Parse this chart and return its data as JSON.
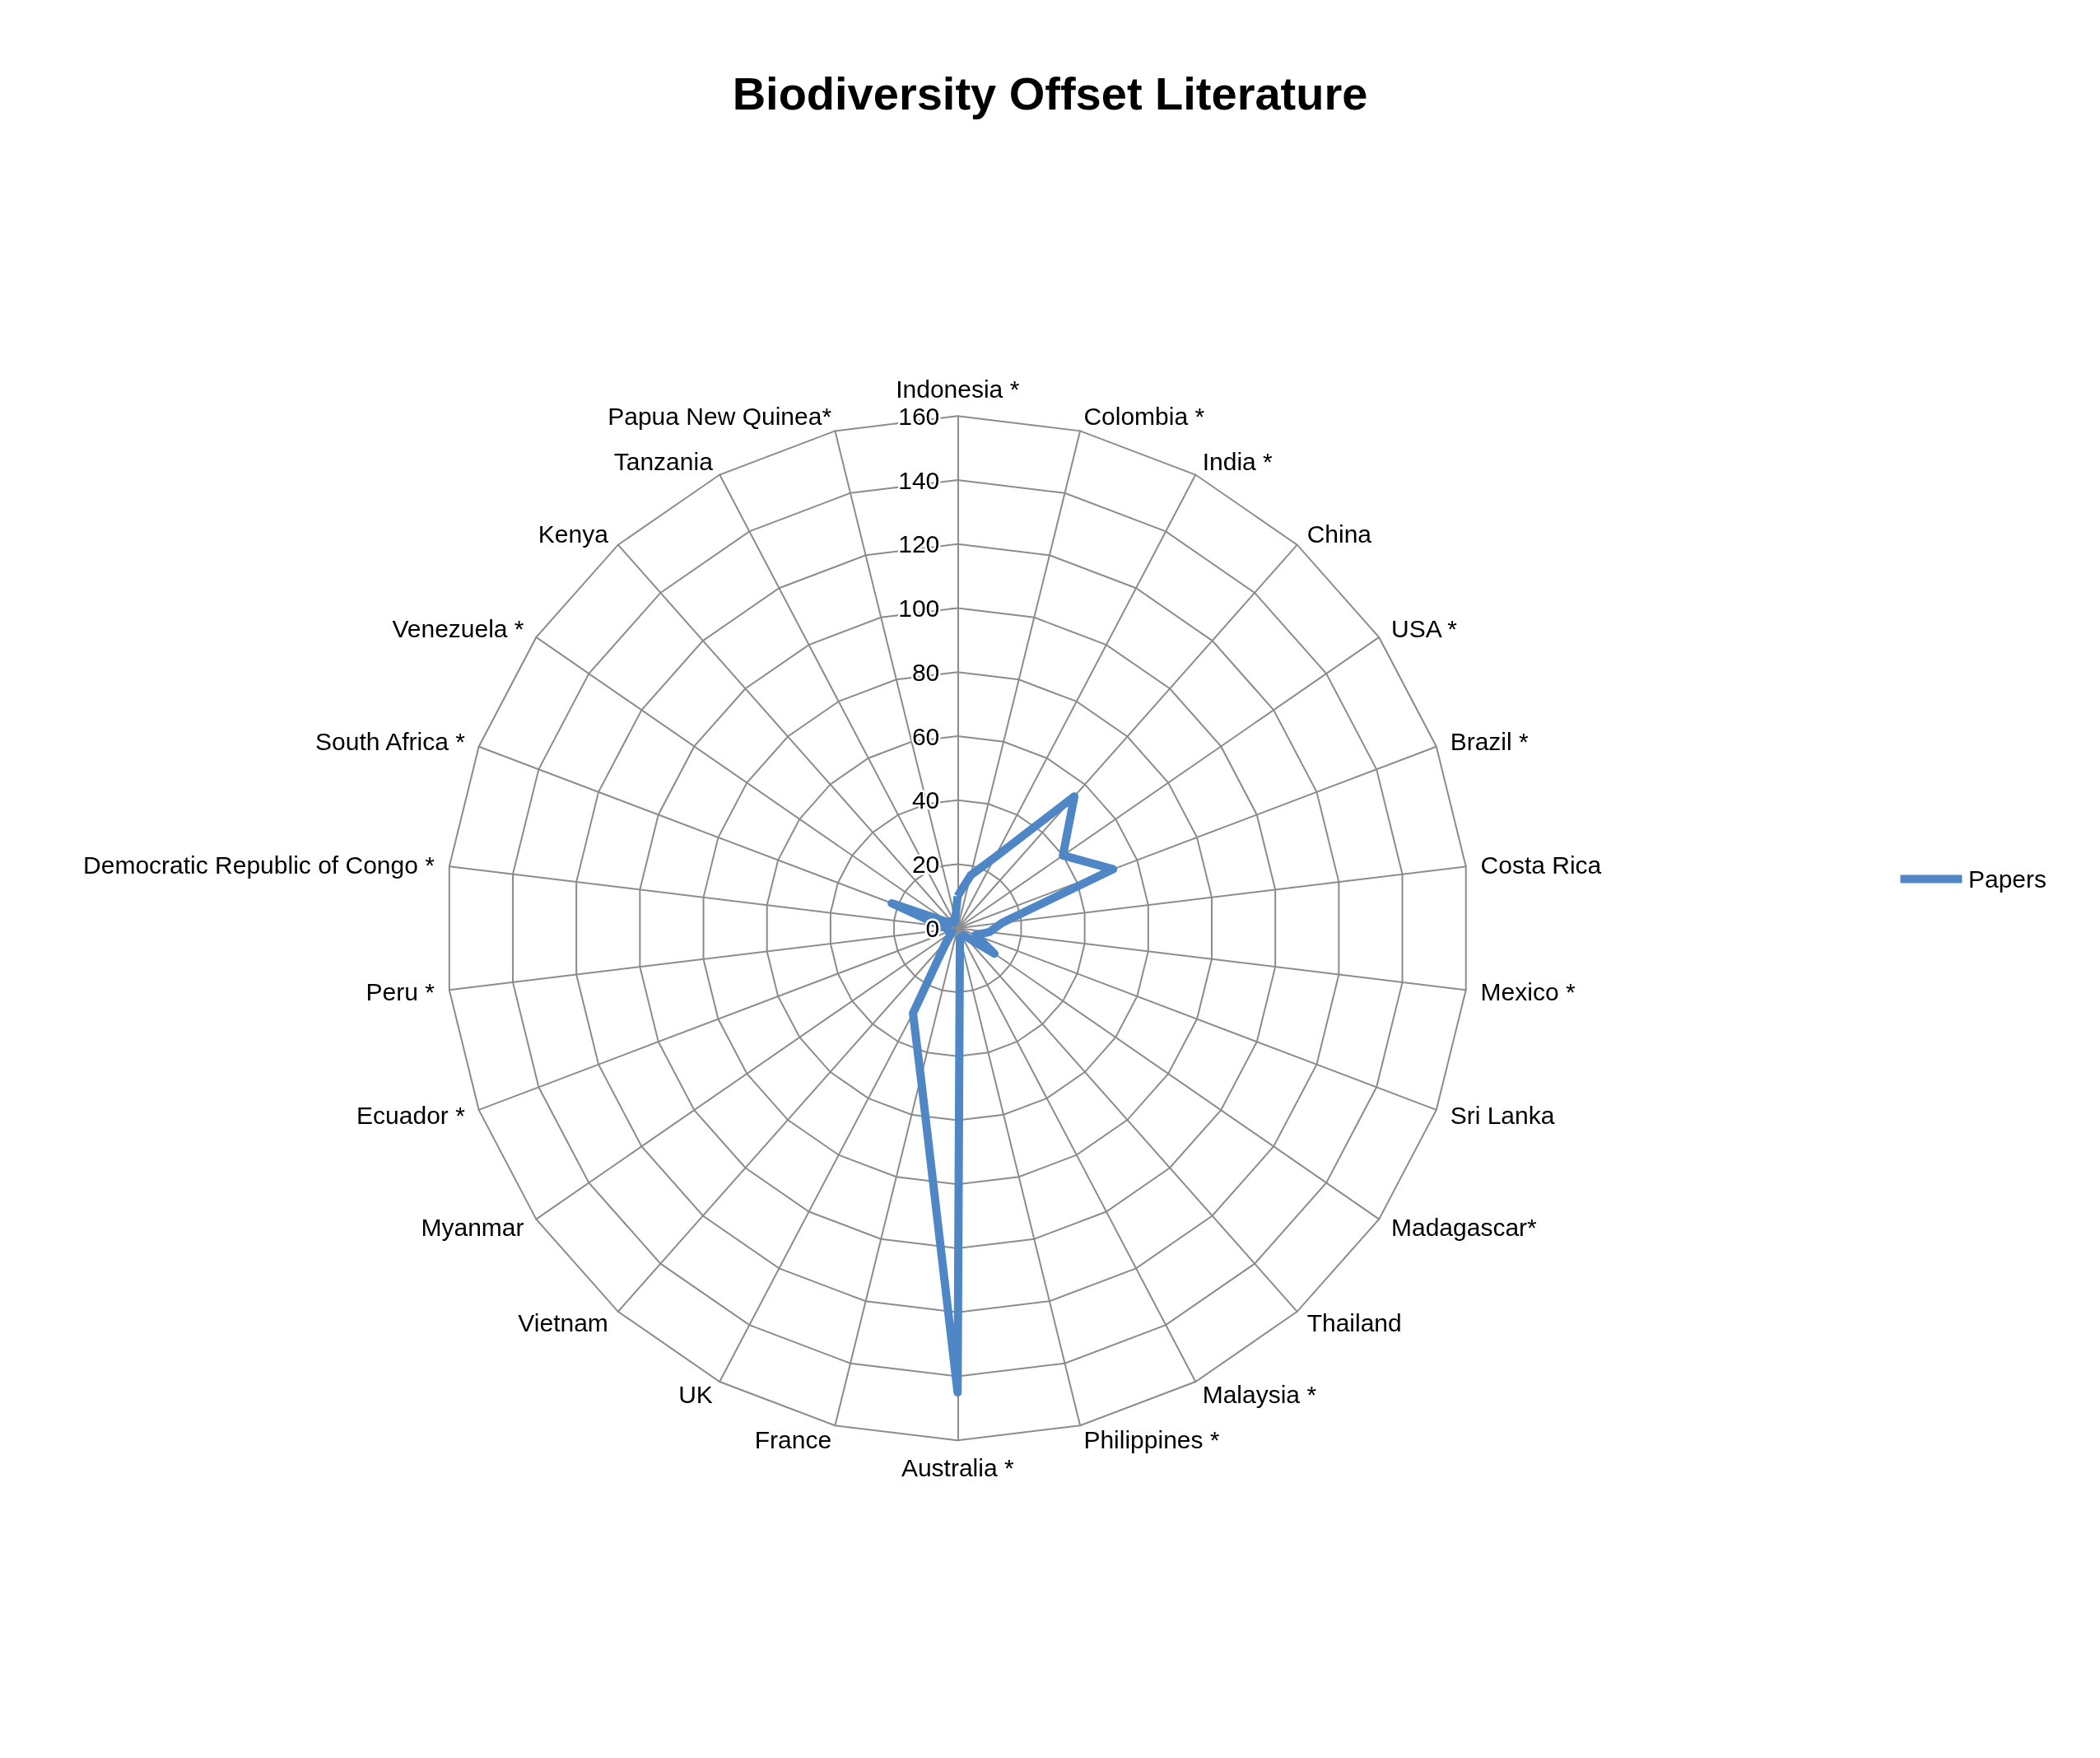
{
  "chart_data": {
    "type": "radar",
    "title": "Biodiversity Offset Literature",
    "categories": [
      "Indonesia *",
      "Colombia *",
      "India *",
      "China",
      "USA *",
      "Brazil *",
      "Costa Rica",
      "Mexico *",
      "Sri Lanka",
      "Madagascar*",
      "Thailand",
      "Malaysia *",
      "Philippines *",
      "Australia *",
      "France",
      "UK",
      "Vietnam",
      "Myanmar",
      "Ecuador *",
      "Peru *",
      "Democratic Republic of Congo *",
      "South Africa *",
      "Venezuela *",
      "Kenya",
      "Tanzania",
      "Papua New Quinea*"
    ],
    "series": [
      {
        "name": "Papers",
        "color": "#4f86c6",
        "values": [
          10,
          17,
          25,
          55,
          40,
          52,
          14,
          10,
          6,
          14,
          3,
          3,
          3,
          145,
          48,
          30,
          5,
          2,
          3,
          3,
          5,
          22,
          3,
          3,
          2,
          3
        ]
      }
    ],
    "ylim": [
      0,
      160
    ],
    "yticks": [
      0,
      20,
      40,
      60,
      80,
      100,
      120,
      140,
      160
    ],
    "legend": "right",
    "marker": "none"
  }
}
